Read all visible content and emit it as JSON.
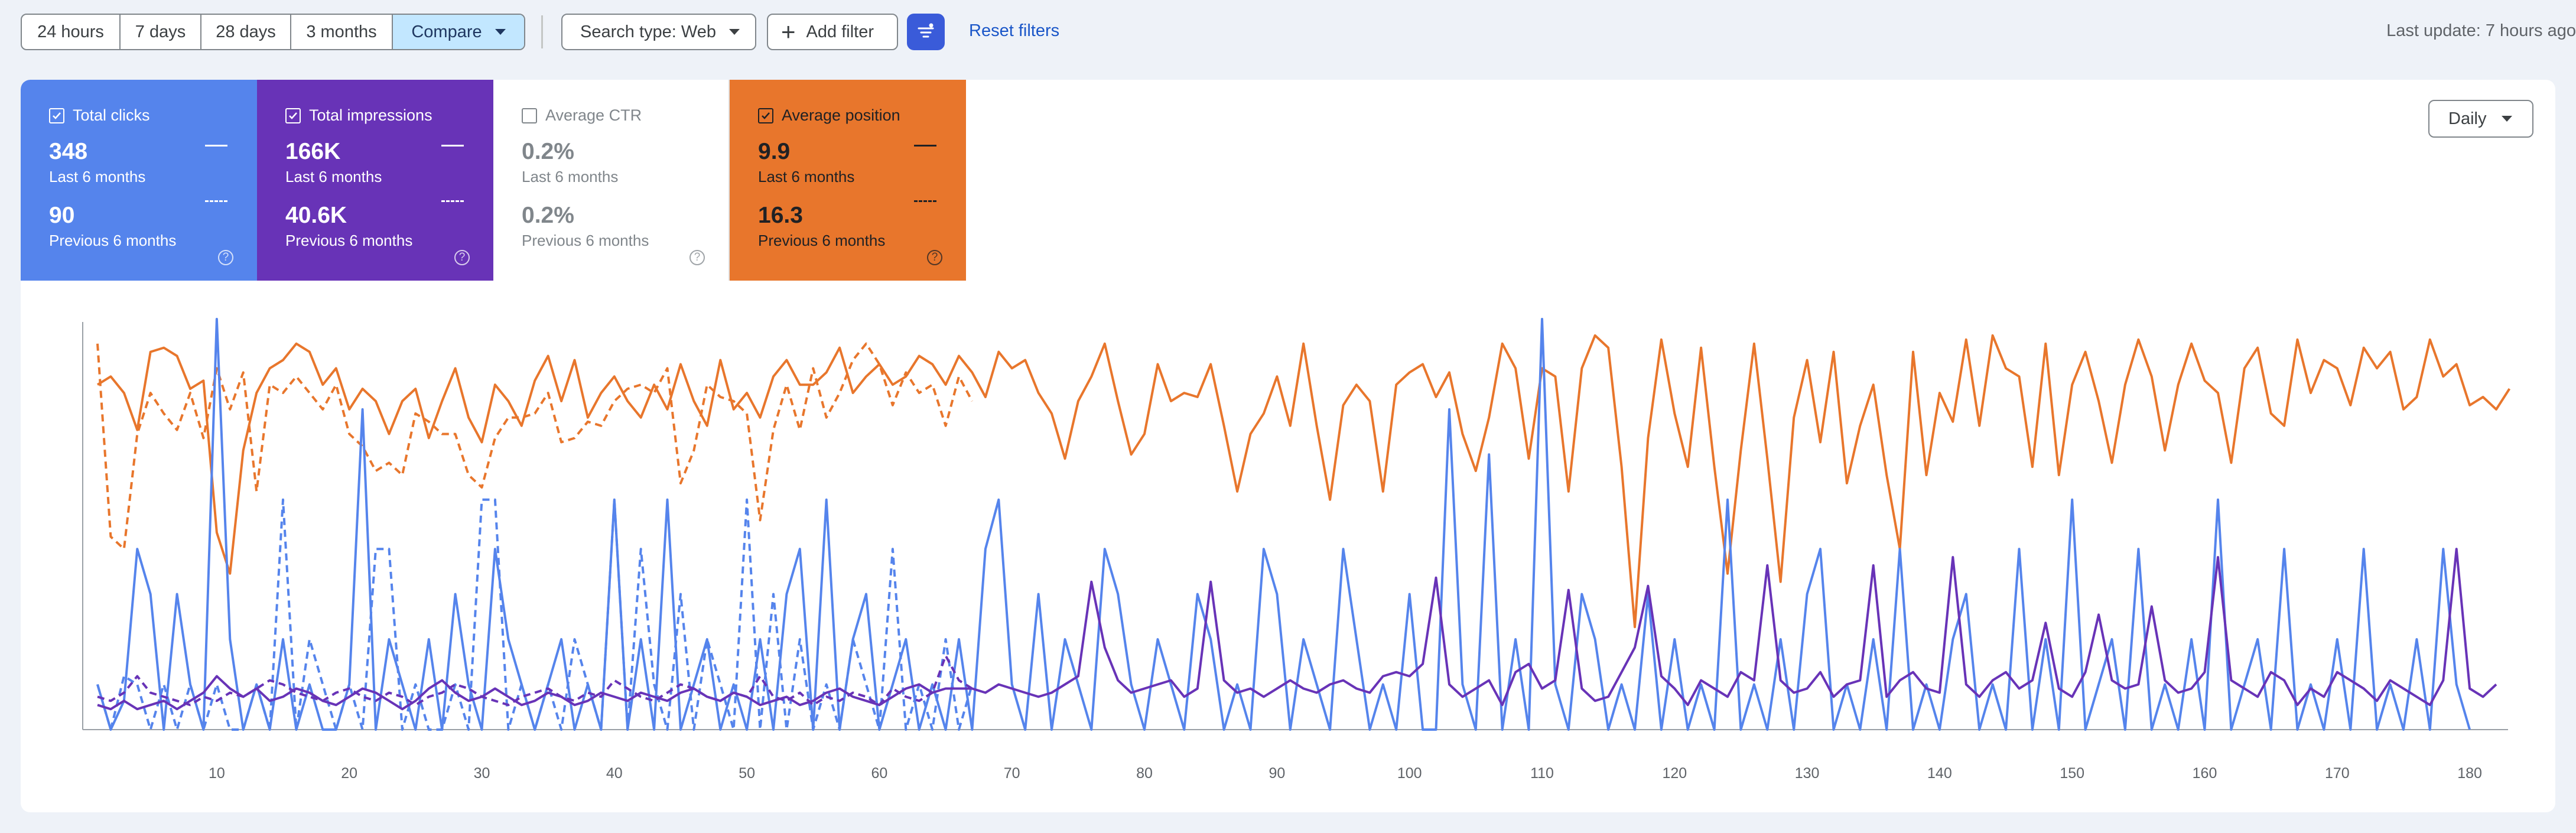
{
  "toolbar": {
    "ranges": [
      "24 hours",
      "7 days",
      "28 days",
      "3 months",
      "Compare"
    ],
    "active_range": "Compare",
    "search_type": "Search type: Web",
    "add_filter": "Add filter",
    "reset_filters": "Reset filters",
    "last_update": "Last update: 7 hours ago"
  },
  "metrics": [
    {
      "title": "Total clicks",
      "checked": true,
      "current_value": "348",
      "current_label": "Last 6 months",
      "previous_value": "90",
      "previous_label": "Previous 6 months",
      "color": "#5584ec"
    },
    {
      "title": "Total impressions",
      "checked": true,
      "current_value": "166K",
      "current_label": "Last 6 months",
      "previous_value": "40.6K",
      "previous_label": "Previous 6 months",
      "color": "#6833b7"
    },
    {
      "title": "Average CTR",
      "checked": false,
      "current_value": "0.2%",
      "current_label": "Last 6 months",
      "previous_value": "0.2%",
      "previous_label": "Previous 6 months",
      "color": "#ffffff"
    },
    {
      "title": "Average position",
      "checked": true,
      "current_value": "9.9",
      "current_label": "Last 6 months",
      "previous_value": "16.3",
      "previous_label": "Previous 6 months",
      "color": "#e8762c"
    }
  ],
  "granularity": "Daily",
  "icons": {
    "checkbox": "checkbox-icon",
    "caret": "caret-down-icon",
    "plus": "plus-icon",
    "filter": "filter-settings-icon",
    "help": "help-icon"
  },
  "chart_data": {
    "type": "line",
    "x_ticks": [
      10,
      20,
      30,
      40,
      50,
      60,
      70,
      80,
      90,
      100,
      110,
      120,
      130,
      140,
      150,
      160,
      170,
      180
    ],
    "xlim": [
      1,
      182
    ],
    "ylim": [
      0,
      1
    ],
    "grid": false,
    "legend": "none",
    "series": [
      {
        "key": "position_current",
        "color": "#e8762c",
        "dashed": false,
        "values": [
          0.84,
          0.86,
          0.82,
          0.73,
          0.92,
          0.93,
          0.91,
          0.83,
          0.85,
          0.48,
          0.38,
          0.68,
          0.82,
          0.88,
          0.9,
          0.94,
          0.92,
          0.84,
          0.88,
          0.78,
          0.83,
          0.8,
          0.72,
          0.8,
          0.83,
          0.71,
          0.8,
          0.88,
          0.76,
          0.7,
          0.84,
          0.8,
          0.74,
          0.85,
          0.91,
          0.8,
          0.9,
          0.76,
          0.82,
          0.86,
          0.8,
          0.76,
          0.84,
          0.78,
          0.89,
          0.8,
          0.74,
          0.9,
          0.78,
          0.82,
          0.76,
          0.86,
          0.9,
          0.84,
          0.84,
          0.87,
          0.93,
          0.82,
          0.86,
          0.89,
          0.84,
          0.86,
          0.91,
          0.89,
          0.84,
          0.91,
          0.87,
          0.81,
          0.92,
          0.88,
          0.9,
          0.82,
          0.77,
          0.66,
          0.8,
          0.86,
          0.94,
          0.8,
          0.67,
          0.72,
          0.89,
          0.8,
          0.82,
          0.81,
          0.89,
          0.74,
          0.58,
          0.72,
          0.77,
          0.86,
          0.74,
          0.94,
          0.74,
          0.56,
          0.79,
          0.84,
          0.8,
          0.58,
          0.84,
          0.87,
          0.89,
          0.81,
          0.87,
          0.72,
          0.63,
          0.76,
          0.94,
          0.88,
          0.66,
          0.88,
          0.86,
          0.58,
          0.88,
          0.96,
          0.93,
          0.64,
          0.25,
          0.71,
          0.95,
          0.77,
          0.64,
          0.93,
          0.64,
          0.38,
          0.68,
          0.94,
          0.66,
          0.36,
          0.76,
          0.9,
          0.7,
          0.92,
          0.6,
          0.74,
          0.84,
          0.62,
          0.44,
          0.92,
          0.62,
          0.82,
          0.75,
          0.95,
          0.74,
          0.96,
          0.88,
          0.86,
          0.64,
          0.94,
          0.62,
          0.84,
          0.92,
          0.8,
          0.65,
          0.84,
          0.95,
          0.86,
          0.68,
          0.84,
          0.94,
          0.85,
          0.82,
          0.65,
          0.88,
          0.93,
          0.77,
          0.74,
          0.95,
          0.82,
          0.9,
          0.88,
          0.79,
          0.93,
          0.88,
          0.92,
          0.78,
          0.81,
          0.95,
          0.86,
          0.89,
          0.79,
          0.81,
          0.78,
          0.83
        ]
      },
      {
        "key": "position_previous",
        "color": "#e8762c",
        "dashed": true,
        "values": [
          0.94,
          0.47,
          0.44,
          0.72,
          0.82,
          0.77,
          0.73,
          0.82,
          0.71,
          0.88,
          0.78,
          0.87,
          0.58,
          0.84,
          0.82,
          0.86,
          0.82,
          0.78,
          0.84,
          0.72,
          0.69,
          0.63,
          0.65,
          0.62,
          0.77,
          0.75,
          0.72,
          0.72,
          0.62,
          0.59,
          0.71,
          0.76,
          0.76,
          0.77,
          0.82,
          0.7,
          0.71,
          0.75,
          0.74,
          0.8,
          0.83,
          0.84,
          0.82,
          0.88,
          0.6,
          0.68,
          0.84,
          0.81,
          0.8,
          0.77,
          0.51,
          0.73,
          0.84,
          0.73,
          0.88,
          0.76,
          0.82,
          0.9,
          0.94,
          0.89,
          0.79,
          0.87,
          0.82,
          0.84,
          0.74,
          0.86,
          0.8
        ]
      },
      {
        "key": "clicks_current",
        "color": "#5584ec",
        "dashed": false,
        "values": [
          0.11,
          0.0,
          0.07,
          0.44,
          0.33,
          0.0,
          0.33,
          0.11,
          0.0,
          1.0,
          0.22,
          0.0,
          0.11,
          0.0,
          0.22,
          0.0,
          0.11,
          0.0,
          0.0,
          0.11,
          0.78,
          0.0,
          0.22,
          0.11,
          0.0,
          0.22,
          0.0,
          0.33,
          0.11,
          0.0,
          0.44,
          0.22,
          0.11,
          0.0,
          0.11,
          0.22,
          0.0,
          0.11,
          0.0,
          0.56,
          0.0,
          0.22,
          0.0,
          0.56,
          0.0,
          0.11,
          0.22,
          0.0,
          0.11,
          0.0,
          0.22,
          0.0,
          0.33,
          0.44,
          0.0,
          0.56,
          0.0,
          0.22,
          0.33,
          0.0,
          0.11,
          0.22,
          0.0,
          0.11,
          0.0,
          0.22,
          0.0,
          0.44,
          0.56,
          0.11,
          0.0,
          0.33,
          0.0,
          0.22,
          0.11,
          0.0,
          0.44,
          0.33,
          0.11,
          0.0,
          0.22,
          0.11,
          0.0,
          0.33,
          0.22,
          0.0,
          0.11,
          0.0,
          0.44,
          0.33,
          0.0,
          0.22,
          0.11,
          0.0,
          0.44,
          0.22,
          0.0,
          0.11,
          0.0,
          0.33,
          0.0,
          0.0,
          0.78,
          0.11,
          0.0,
          0.67,
          0.0,
          0.22,
          0.0,
          1.0,
          0.11,
          0.0,
          0.33,
          0.22,
          0.0,
          0.11,
          0.0,
          0.33,
          0.0,
          0.22,
          0.0,
          0.11,
          0.0,
          0.56,
          0.0,
          0.11,
          0.0,
          0.22,
          0.0,
          0.33,
          0.44,
          0.0,
          0.11,
          0.0,
          0.22,
          0.0,
          0.44,
          0.0,
          0.11,
          0.0,
          0.22,
          0.33,
          0.0,
          0.11,
          0.0,
          0.44,
          0.0,
          0.22,
          0.0,
          0.56,
          0.0,
          0.11,
          0.22,
          0.0,
          0.44,
          0.0,
          0.11,
          0.0,
          0.22,
          0.0,
          0.56,
          0.0,
          0.11,
          0.22,
          0.0,
          0.44,
          0.0,
          0.11,
          0.0,
          0.22,
          0.0,
          0.44,
          0.0,
          0.11,
          0.0,
          0.22,
          0.0,
          0.44,
          0.11,
          0.0
        ]
      },
      {
        "key": "clicks_previous",
        "color": "#5584ec",
        "dashed": true,
        "values": [
          0.11,
          0.0,
          0.13,
          0.11,
          0.0,
          0.11,
          0.0,
          0.11,
          0.0,
          0.11,
          0.0,
          0.0,
          0.11,
          0.0,
          0.56,
          0.0,
          0.22,
          0.11,
          0.0,
          0.11,
          0.0,
          0.44,
          0.44,
          0.0,
          0.11,
          0.0,
          0.0,
          0.11,
          0.0,
          0.56,
          0.56,
          0.0,
          0.11,
          0.0,
          0.11,
          0.0,
          0.22,
          0.11,
          0.0,
          0.56,
          0.0,
          0.44,
          0.11,
          0.0,
          0.33,
          0.0,
          0.22,
          0.11,
          0.0,
          0.56,
          0.0,
          0.33,
          0.0,
          0.22,
          0.0,
          0.11,
          0.0,
          0.22,
          0.11,
          0.0,
          0.44,
          0.0,
          0.11,
          0.0,
          0.22,
          0.0,
          0.11
        ]
      },
      {
        "key": "impressions_current",
        "color": "#6833b7",
        "dashed": false,
        "values": [
          0.06,
          0.05,
          0.07,
          0.05,
          0.06,
          0.07,
          0.05,
          0.07,
          0.09,
          0.13,
          0.1,
          0.08,
          0.1,
          0.07,
          0.08,
          0.1,
          0.09,
          0.07,
          0.06,
          0.08,
          0.1,
          0.09,
          0.07,
          0.05,
          0.07,
          0.1,
          0.12,
          0.09,
          0.07,
          0.08,
          0.1,
          0.08,
          0.06,
          0.07,
          0.09,
          0.08,
          0.06,
          0.07,
          0.09,
          0.08,
          0.07,
          0.09,
          0.08,
          0.07,
          0.09,
          0.1,
          0.08,
          0.07,
          0.09,
          0.08,
          0.06,
          0.07,
          0.08,
          0.06,
          0.07,
          0.09,
          0.1,
          0.08,
          0.07,
          0.06,
          0.08,
          0.1,
          0.11,
          0.09,
          0.1,
          0.1,
          0.1,
          0.09,
          0.11,
          0.1,
          0.09,
          0.08,
          0.09,
          0.11,
          0.13,
          0.36,
          0.2,
          0.12,
          0.09,
          0.1,
          0.11,
          0.12,
          0.08,
          0.1,
          0.36,
          0.12,
          0.09,
          0.1,
          0.08,
          0.1,
          0.12,
          0.1,
          0.09,
          0.11,
          0.12,
          0.1,
          0.09,
          0.13,
          0.14,
          0.13,
          0.16,
          0.37,
          0.11,
          0.08,
          0.1,
          0.12,
          0.06,
          0.14,
          0.16,
          0.1,
          0.12,
          0.34,
          0.1,
          0.07,
          0.08,
          0.14,
          0.2,
          0.35,
          0.13,
          0.1,
          0.06,
          0.12,
          0.1,
          0.08,
          0.14,
          0.12,
          0.4,
          0.12,
          0.09,
          0.1,
          0.14,
          0.08,
          0.11,
          0.12,
          0.4,
          0.08,
          0.12,
          0.14,
          0.1,
          0.09,
          0.42,
          0.11,
          0.08,
          0.12,
          0.14,
          0.1,
          0.12,
          0.26,
          0.1,
          0.08,
          0.14,
          0.28,
          0.12,
          0.1,
          0.11,
          0.3,
          0.12,
          0.09,
          0.1,
          0.14,
          0.42,
          0.12,
          0.1,
          0.08,
          0.14,
          0.12,
          0.06,
          0.1,
          0.08,
          0.14,
          0.12,
          0.1,
          0.07,
          0.12,
          0.1,
          0.08,
          0.06,
          0.12,
          0.44,
          0.1,
          0.08,
          0.11
        ]
      },
      {
        "key": "impressions_previous",
        "color": "#6833b7",
        "dashed": true,
        "values": [
          0.08,
          0.07,
          0.09,
          0.13,
          0.09,
          0.08,
          0.07,
          0.06,
          0.08,
          0.07,
          0.09,
          0.08,
          0.1,
          0.12,
          0.11,
          0.09,
          0.08,
          0.07,
          0.09,
          0.1,
          0.08,
          0.07,
          0.09,
          0.08,
          0.06,
          0.08,
          0.09,
          0.11,
          0.1,
          0.08,
          0.07,
          0.06,
          0.08,
          0.09,
          0.1,
          0.08,
          0.07,
          0.09,
          0.08,
          0.12,
          0.1,
          0.08,
          0.07,
          0.09,
          0.11,
          0.1,
          0.08,
          0.07,
          0.09,
          0.08,
          0.13,
          0.08,
          0.07,
          0.09,
          0.06,
          0.08,
          0.07,
          0.09,
          0.08,
          0.06,
          0.1,
          0.08,
          0.07,
          0.09,
          0.18,
          0.12,
          0.1
        ]
      }
    ]
  }
}
